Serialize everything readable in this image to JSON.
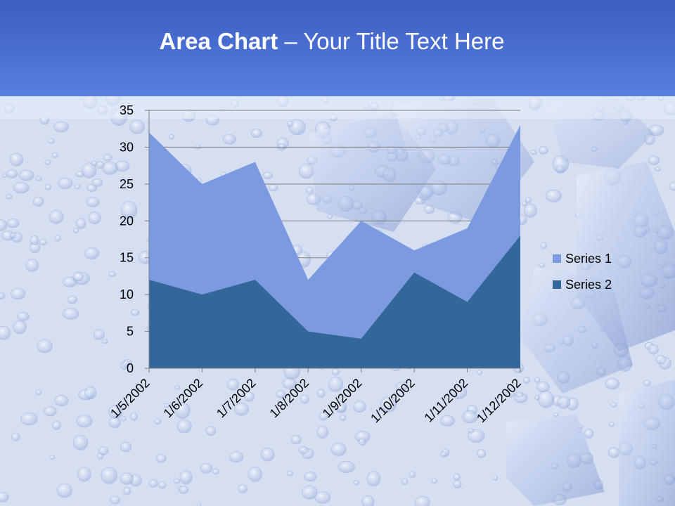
{
  "slide": {
    "title_bold": "Area Chart",
    "title_rest": " – Your Title Text Here"
  },
  "colors": {
    "series1": "#7b9ae0",
    "series2": "#336699",
    "header": "#4a6fd3"
  },
  "chart_data": {
    "type": "area",
    "stacked": false,
    "categories": [
      "1/5/2002",
      "1/6/2002",
      "1/7/2002",
      "1/8/2002",
      "1/9/2002",
      "1/10/2002",
      "1/11/2002",
      "1/12/2002"
    ],
    "series": [
      {
        "name": "Series 1",
        "values": [
          32,
          25,
          28,
          12,
          20,
          16,
          19,
          33
        ]
      },
      {
        "name": "Series 2",
        "values": [
          12,
          10,
          12,
          5,
          4,
          13,
          9,
          18
        ]
      }
    ],
    "ylim": [
      0,
      35
    ],
    "yticks": [
      "0",
      "5",
      "10",
      "15",
      "20",
      "25",
      "30",
      "35"
    ],
    "grid": true,
    "legend": "right"
  }
}
